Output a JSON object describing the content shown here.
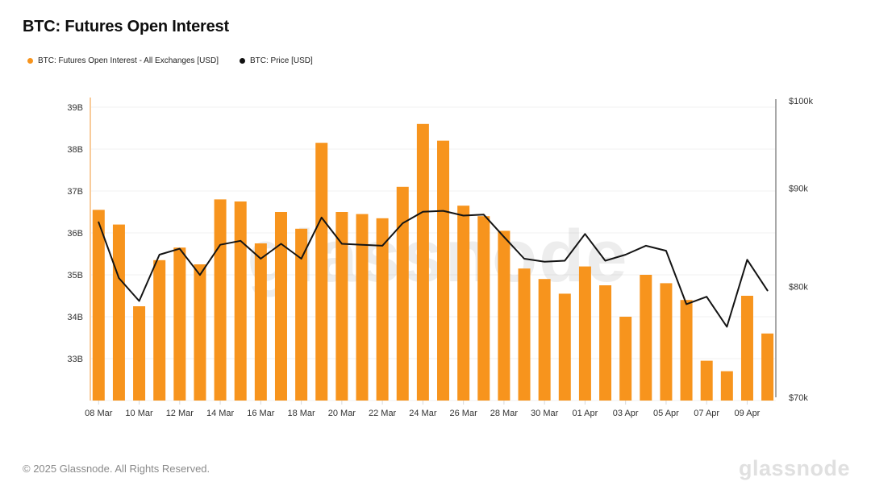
{
  "header": {
    "title": "BTC: Futures Open Interest"
  },
  "legend": [
    {
      "label": "BTC: Futures Open Interest - All Exchanges [USD]",
      "color": "#F7941D"
    },
    {
      "label": "BTC: Price [USD]",
      "color": "#111111"
    }
  ],
  "watermark": "glassnode",
  "footer": {
    "copyright": "© 2025 Glassnode. All Rights Reserved.",
    "brand": "glassnode"
  },
  "colors": {
    "bar_orange": "#F7941D",
    "price_line": "#141414",
    "left_axis_line": "#F8CB9A",
    "right_axis_line": "#8C8C8C",
    "gridline": "#F2F2F2",
    "tick_label": "#333333",
    "xtick_mark": "#D8D8D8",
    "watermark_gray": "#E5E5E5"
  },
  "chart_data": {
    "type": "bar",
    "title": "BTC: Futures Open Interest",
    "categories": [
      "08 Mar",
      "09 Mar",
      "10 Mar",
      "11 Mar",
      "12 Mar",
      "13 Mar",
      "14 Mar",
      "15 Mar",
      "16 Mar",
      "17 Mar",
      "18 Mar",
      "19 Mar",
      "20 Mar",
      "21 Mar",
      "22 Mar",
      "23 Mar",
      "24 Mar",
      "25 Mar",
      "26 Mar",
      "27 Mar",
      "28 Mar",
      "29 Mar",
      "30 Mar",
      "31 Mar",
      "01 Apr",
      "02 Apr",
      "03 Apr",
      "04 Apr",
      "05 Apr",
      "06 Apr",
      "07 Apr",
      "08 Apr",
      "09 Apr",
      "10 Apr"
    ],
    "x_tick_labels": [
      "08 Mar",
      "10 Mar",
      "12 Mar",
      "14 Mar",
      "16 Mar",
      "18 Mar",
      "20 Mar",
      "22 Mar",
      "24 Mar",
      "26 Mar",
      "28 Mar",
      "30 Mar",
      "01 Apr",
      "03 Apr",
      "05 Apr",
      "07 Apr",
      "09 Apr"
    ],
    "series": [
      {
        "name": "BTC: Futures Open Interest - All Exchanges [USD]",
        "type": "bar",
        "axis": "left",
        "unit": "billions USD",
        "color": "#F7941D",
        "values": [
          36.55,
          36.2,
          34.25,
          35.35,
          35.65,
          35.25,
          36.8,
          36.75,
          35.75,
          36.5,
          36.1,
          38.15,
          36.5,
          36.45,
          36.35,
          37.1,
          38.6,
          38.2,
          36.65,
          36.4,
          36.05,
          35.15,
          34.9,
          34.55,
          35.2,
          34.75,
          34.0,
          35.0,
          34.8,
          34.4,
          32.95,
          32.7,
          34.5,
          33.6
        ]
      },
      {
        "name": "BTC: Price [USD]",
        "type": "line",
        "axis": "right",
        "unit": "thousands USD",
        "color": "#141414",
        "values": [
          86.4,
          80.8,
          78.6,
          83.1,
          83.7,
          81.1,
          84.1,
          84.5,
          82.7,
          84.2,
          82.7,
          86.9,
          84.2,
          84.1,
          84.0,
          86.3,
          87.5,
          87.6,
          87.1,
          87.2,
          84.9,
          82.7,
          82.4,
          82.5,
          85.2,
          82.5,
          83.1,
          84.0,
          83.5,
          78.3,
          79.0,
          76.2,
          82.6,
          79.6
        ]
      }
    ],
    "left_axis": {
      "scale": "linear",
      "range_billions": [
        32,
        39.2
      ],
      "ticks": [
        {
          "label": "33B",
          "value": 33
        },
        {
          "label": "34B",
          "value": 34
        },
        {
          "label": "35B",
          "value": 35
        },
        {
          "label": "36B",
          "value": 36
        },
        {
          "label": "37B",
          "value": 37
        },
        {
          "label": "38B",
          "value": 38
        },
        {
          "label": "39B",
          "value": 39
        }
      ]
    },
    "right_axis": {
      "scale": "log",
      "range_thousands": [
        69.7,
        100
      ],
      "ticks": [
        {
          "label": "$70k",
          "value": 70
        },
        {
          "label": "$80k",
          "value": 80
        },
        {
          "label": "$90k",
          "value": 90
        },
        {
          "label": "$100k",
          "value": 100
        }
      ]
    },
    "grid": "horizontal",
    "legend_position": "top-left"
  }
}
